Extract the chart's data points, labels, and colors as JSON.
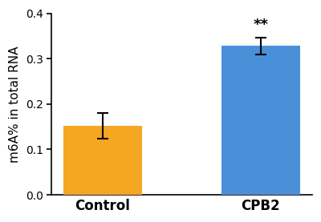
{
  "categories": [
    "Control",
    "CPB2"
  ],
  "values": [
    0.152,
    0.328
  ],
  "errors": [
    0.028,
    0.018
  ],
  "bar_colors": [
    "#F5A623",
    "#4A90D9"
  ],
  "ylabel": "m6A% in total RNA",
  "ylim": [
    0.0,
    0.4
  ],
  "yticks": [
    0.0,
    0.1,
    0.2,
    0.3,
    0.4
  ],
  "significance": "**",
  "sig_bar_index": 1,
  "bar_width": 0.5,
  "background_color": "#ffffff",
  "edge_color": "none",
  "error_capsize": 5,
  "error_color": "black",
  "error_linewidth": 1.5
}
